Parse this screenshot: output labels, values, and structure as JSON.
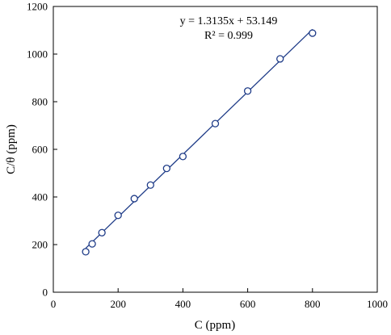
{
  "chart_data": {
    "type": "scatter",
    "xlabel": "C (ppm)",
    "ylabel": "C/θ  (ppm)",
    "xlim": [
      0,
      1000
    ],
    "ylim": [
      0,
      1200
    ],
    "xticks": [
      0,
      200,
      400,
      600,
      800,
      1000
    ],
    "yticks": [
      0,
      200,
      400,
      600,
      800,
      1000,
      1200
    ],
    "xtick_labels": [
      "0",
      "200",
      "400",
      "600",
      "800",
      "1000"
    ],
    "ytick_labels": [
      "0",
      "200",
      "400",
      "600",
      "800",
      "1000",
      "1200"
    ],
    "grid": false,
    "series": [
      {
        "x": [
          100,
          120,
          150,
          200,
          250,
          300,
          350,
          400,
          500,
          600,
          700,
          800
        ],
        "y": [
          170,
          203,
          250,
          323,
          393,
          450,
          520,
          570,
          708,
          845,
          980,
          1088
        ]
      }
    ],
    "trendline": {
      "slope": 1.3135,
      "intercept": 53.149,
      "x_range": [
        100,
        800
      ]
    },
    "annotations": {
      "equation": "y = 1.3135x + 53.149",
      "r2": "R² = 0.999"
    },
    "colors": {
      "marker": "#1f3c88",
      "line": "#1f3c88",
      "axis": "#000000"
    }
  }
}
